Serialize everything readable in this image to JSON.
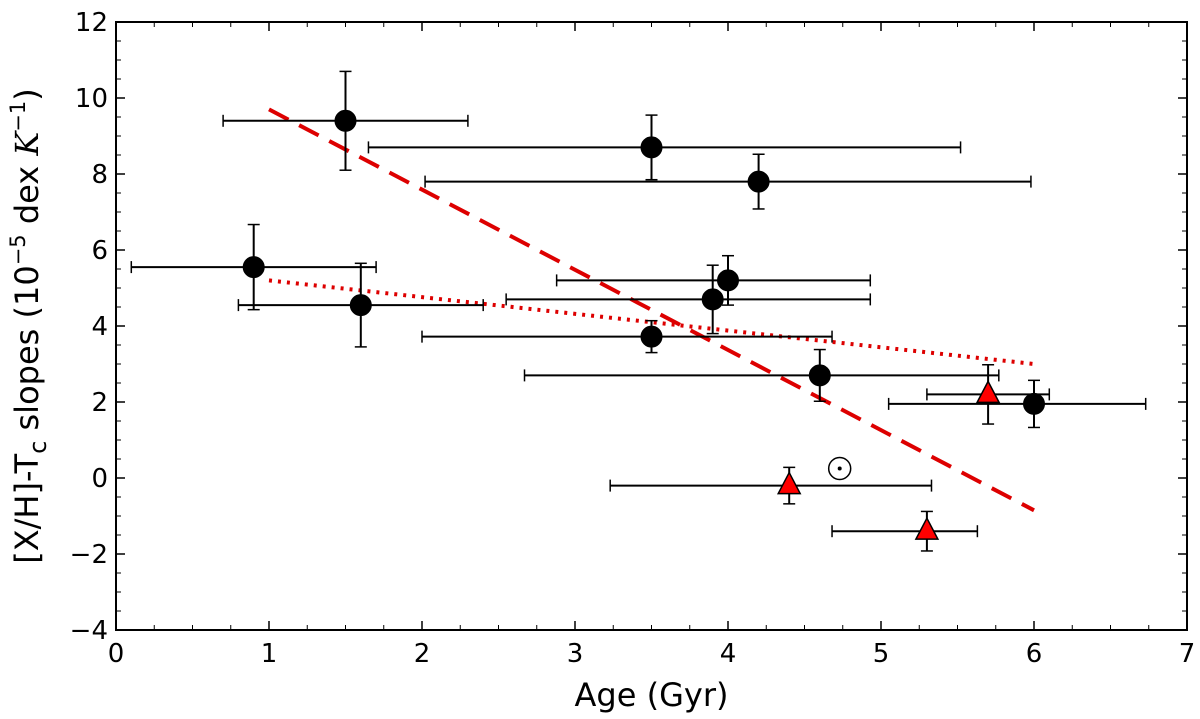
{
  "chart_data": {
    "type": "scatter",
    "title": "",
    "xlabel": "Age (Gyr)",
    "ylabel": {
      "prefix": "[X/H]-T",
      "sub": "c",
      "mid": " slopes (10",
      "sup": "−5",
      "unit_text": " dex ",
      "unit_K": "K",
      "unit_sup": "−1",
      "suffix": ")"
    },
    "xlim": [
      0,
      7
    ],
    "ylim": [
      -4,
      12
    ],
    "x_ticks": [
      0,
      1,
      2,
      3,
      4,
      5,
      6,
      7
    ],
    "y_ticks": [
      -4,
      -2,
      0,
      2,
      4,
      6,
      8,
      10,
      12
    ],
    "x_minor_step": 0.25,
    "y_minor_step": 0.5,
    "grid": false,
    "legend": false,
    "series": [
      {
        "marker": "circle",
        "color": "#000000",
        "points": [
          {
            "x": 1.5,
            "y": 9.4,
            "xerr_low": 0.8,
            "xerr_high": 0.8,
            "yerr_low": 1.3,
            "yerr_high": 1.3
          },
          {
            "x": 3.5,
            "y": 8.7,
            "xerr_low": 1.85,
            "xerr_high": 2.02,
            "yerr_low": 0.85,
            "yerr_high": 0.85
          },
          {
            "x": 4.2,
            "y": 7.8,
            "xerr_low": 2.18,
            "xerr_high": 1.78,
            "yerr_low": 0.72,
            "yerr_high": 0.72
          },
          {
            "x": 0.9,
            "y": 5.55,
            "xerr_low": 0.8,
            "xerr_high": 0.8,
            "yerr_low": 1.12,
            "yerr_high": 1.12
          },
          {
            "x": 1.6,
            "y": 4.55,
            "xerr_low": 0.8,
            "xerr_high": 0.8,
            "yerr_low": 1.1,
            "yerr_high": 1.1
          },
          {
            "x": 4.0,
            "y": 5.2,
            "xerr_low": 1.12,
            "xerr_high": 0.93,
            "yerr_low": 0.65,
            "yerr_high": 0.65
          },
          {
            "x": 3.9,
            "y": 4.7,
            "xerr_low": 1.35,
            "xerr_high": 1.03,
            "yerr_low": 0.9,
            "yerr_high": 0.9
          },
          {
            "x": 3.5,
            "y": 3.72,
            "xerr_low": 1.5,
            "xerr_high": 1.18,
            "yerr_low": 0.42,
            "yerr_high": 0.42
          },
          {
            "x": 4.6,
            "y": 2.7,
            "xerr_low": 1.93,
            "xerr_high": 1.17,
            "yerr_low": 0.68,
            "yerr_high": 0.68
          },
          {
            "x": 6.0,
            "y": 1.95,
            "xerr_low": 0.95,
            "xerr_high": 0.73,
            "yerr_low": 0.62,
            "yerr_high": 0.62
          }
        ]
      },
      {
        "marker": "triangle",
        "color": "#ff0000",
        "points": [
          {
            "x": 5.7,
            "y": 2.2,
            "xerr_low": 0.4,
            "xerr_high": 0.4,
            "yerr_low": 0.78,
            "yerr_high": 0.78
          },
          {
            "x": 4.4,
            "y": -0.2,
            "xerr_low": 1.17,
            "xerr_high": 0.93,
            "yerr_low": 0.48,
            "yerr_high": 0.48
          },
          {
            "x": 5.3,
            "y": -1.4,
            "xerr_low": 0.62,
            "xerr_high": 0.33,
            "yerr_low": 0.52,
            "yerr_high": 0.52
          }
        ]
      }
    ],
    "sun": {
      "x": 4.73,
      "y": 0.25,
      "marker": "sun-symbol"
    },
    "fit_lines": [
      {
        "style": "dashed",
        "color": "#dd0000",
        "x": [
          1,
          6
        ],
        "y": [
          9.7,
          -0.85
        ]
      },
      {
        "style": "dotted",
        "color": "#dd0000",
        "x": [
          1,
          6
        ],
        "y": [
          5.2,
          3.0
        ]
      }
    ]
  }
}
